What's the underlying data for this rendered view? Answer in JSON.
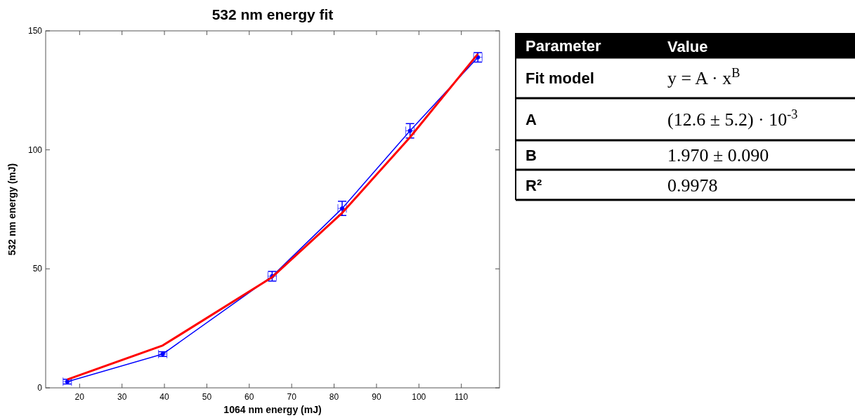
{
  "chart_data": {
    "type": "line",
    "title": "532 nm energy fit",
    "xlabel": "1064 nm energy (mJ)",
    "ylabel": "532 nm energy (mJ)",
    "xlim": [
      12,
      119
    ],
    "xticks": [
      20,
      30,
      40,
      50,
      60,
      70,
      80,
      90,
      100,
      110
    ],
    "ylim": [
      0,
      150
    ],
    "yticks": [
      0,
      50,
      100,
      150
    ],
    "grid": false,
    "series": [
      {
        "color": "#0000ff",
        "marker": "circle",
        "x": [
          17.1,
          39.6,
          65.4,
          81.9,
          97.9,
          113.9
        ],
        "values": [
          2.6,
          14.2,
          46.9,
          75.4,
          108.0,
          138.9
        ],
        "errors": [
          1,
          1,
          2,
          3,
          3,
          2
        ],
        "xerrors": [
          1,
          1,
          1,
          1,
          1,
          1
        ]
      },
      {
        "color": "#ff0000",
        "marker": "none",
        "x": [
          17.1,
          39.6,
          65.4,
          81.9,
          97.9,
          113.9
        ],
        "values": [
          3.5,
          17.8,
          46.5,
          73.5,
          105.3,
          140.3
        ]
      }
    ],
    "annotations": [
      "Parameter",
      "Value",
      "Fit model",
      "y = A · x$^{B}$",
      "A",
      "(12.6 ± 5.2) · 10$^{-3}$",
      "B",
      "1.970 ± 0.090",
      "R²",
      "0.9978"
    ]
  }
}
